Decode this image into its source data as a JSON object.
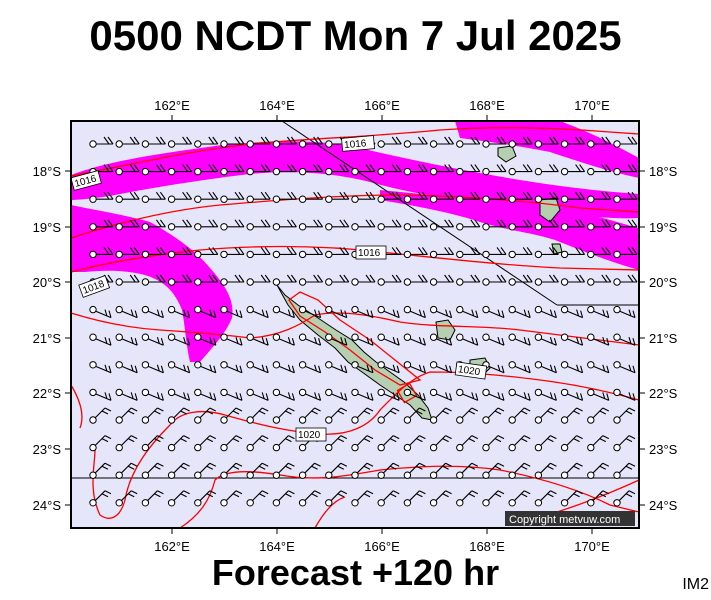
{
  "header": {
    "title": "0500 NCDT Mon 7 Jul 2025"
  },
  "footer": {
    "forecast": "Forecast +120 hr",
    "code": "IM2"
  },
  "map": {
    "lon_ticks": [
      "162°E",
      "164°E",
      "166°E",
      "168°E",
      "170°E"
    ],
    "lat_ticks": [
      "18°S",
      "19°S",
      "20°S",
      "21°S",
      "22°S",
      "23°S",
      "24°S"
    ],
    "isobar_labels": [
      "1016",
      "1016",
      "1016",
      "1018",
      "1020",
      "1020"
    ],
    "copyright": "Copyright metvuw.com",
    "colors": {
      "sea": "#e6e6fa",
      "wind_band": "#ff00ff",
      "isobar": "#ff0000",
      "land": "#b5cfb0"
    }
  }
}
